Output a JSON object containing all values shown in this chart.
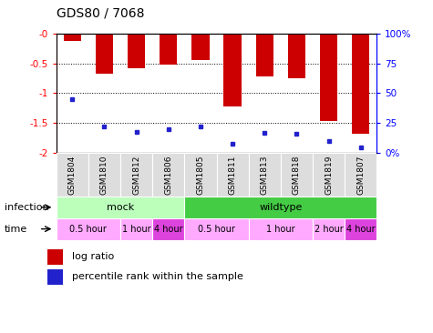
{
  "title": "GDS80 / 7068",
  "samples": [
    "GSM1804",
    "GSM1810",
    "GSM1812",
    "GSM1806",
    "GSM1805",
    "GSM1811",
    "GSM1813",
    "GSM1818",
    "GSM1819",
    "GSM1807"
  ],
  "log_ratios": [
    -0.13,
    -0.68,
    -0.58,
    -0.52,
    -0.45,
    -1.22,
    -0.72,
    -0.75,
    -1.47,
    -1.68
  ],
  "percentile_ranks": [
    45,
    22,
    18,
    20,
    22,
    8,
    17,
    16,
    10,
    5
  ],
  "ylim": [
    -2.0,
    0.0
  ],
  "yticks": [
    0.0,
    -0.5,
    -1.0,
    -1.5,
    -2.0
  ],
  "ytick_labels": [
    "-0",
    "-0.5",
    "-1",
    "-1.5",
    "-2"
  ],
  "right_yticks": [
    0,
    25,
    50,
    75,
    100
  ],
  "right_ytick_labels": [
    "0%",
    "25",
    "50",
    "75",
    "100%"
  ],
  "bar_color": "#cc0000",
  "blue_color": "#2222cc",
  "bar_width": 0.55,
  "infection_groups": [
    {
      "label": "mock",
      "start": 0,
      "end": 4,
      "color": "#bbffbb"
    },
    {
      "label": "wildtype",
      "start": 4,
      "end": 10,
      "color": "#44cc44"
    }
  ],
  "time_groups": [
    {
      "label": "0.5 hour",
      "start": 0,
      "end": 2,
      "color": "#ffaaff"
    },
    {
      "label": "1 hour",
      "start": 2,
      "end": 3,
      "color": "#ffaaff"
    },
    {
      "label": "4 hour",
      "start": 3,
      "end": 4,
      "color": "#dd44dd"
    },
    {
      "label": "0.5 hour",
      "start": 4,
      "end": 6,
      "color": "#ffaaff"
    },
    {
      "label": "1 hour",
      "start": 6,
      "end": 8,
      "color": "#ffaaff"
    },
    {
      "label": "2 hour",
      "start": 8,
      "end": 9,
      "color": "#ffaaff"
    },
    {
      "label": "4 hour",
      "start": 9,
      "end": 10,
      "color": "#dd44dd"
    }
  ],
  "legend_bar_label": "log ratio",
  "legend_dot_label": "percentile rank within the sample",
  "xlabel_infection": "infection",
  "xlabel_time": "time",
  "n_samples": 10,
  "fig_width": 4.75,
  "fig_height": 3.66
}
